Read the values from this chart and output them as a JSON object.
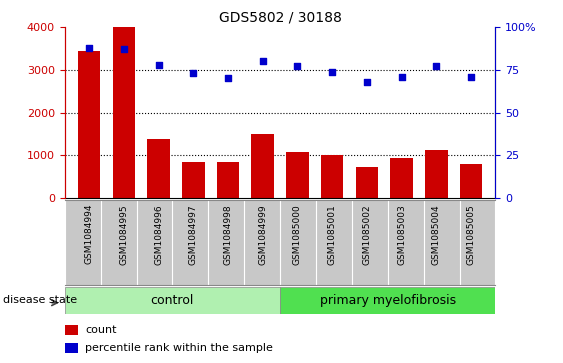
{
  "title": "GDS5802 / 30188",
  "samples": [
    "GSM1084994",
    "GSM1084995",
    "GSM1084996",
    "GSM1084997",
    "GSM1084998",
    "GSM1084999",
    "GSM1085000",
    "GSM1085001",
    "GSM1085002",
    "GSM1085003",
    "GSM1085004",
    "GSM1085005"
  ],
  "counts": [
    3450,
    4000,
    1390,
    840,
    840,
    1500,
    1080,
    1010,
    730,
    940,
    1120,
    790
  ],
  "percentiles": [
    88,
    87,
    78,
    73,
    70,
    80,
    77,
    74,
    68,
    71,
    77,
    71
  ],
  "bar_color": "#cc0000",
  "dot_color": "#0000cc",
  "ylim_left": [
    0,
    4000
  ],
  "ylim_right": [
    0,
    100
  ],
  "yticks_left": [
    0,
    1000,
    2000,
    3000,
    4000
  ],
  "yticks_right": [
    0,
    25,
    50,
    75,
    100
  ],
  "ytick_labels_right": [
    "0",
    "25",
    "50",
    "75",
    "100%"
  ],
  "grid_values": [
    1000,
    2000,
    3000
  ],
  "control_label": "control",
  "disease_label": "primary myelofibrosis",
  "disease_state_label": "disease state",
  "legend_count": "count",
  "legend_percentile": "percentile rank within the sample",
  "bg_color": "#ffffff",
  "tick_area_color": "#c8c8c8",
  "group_color_control": "#b0f0b0",
  "group_color_disease": "#50e050",
  "left_axis_color": "#cc0000",
  "right_axis_color": "#0000cc",
  "n_control": 6,
  "n_disease": 6
}
